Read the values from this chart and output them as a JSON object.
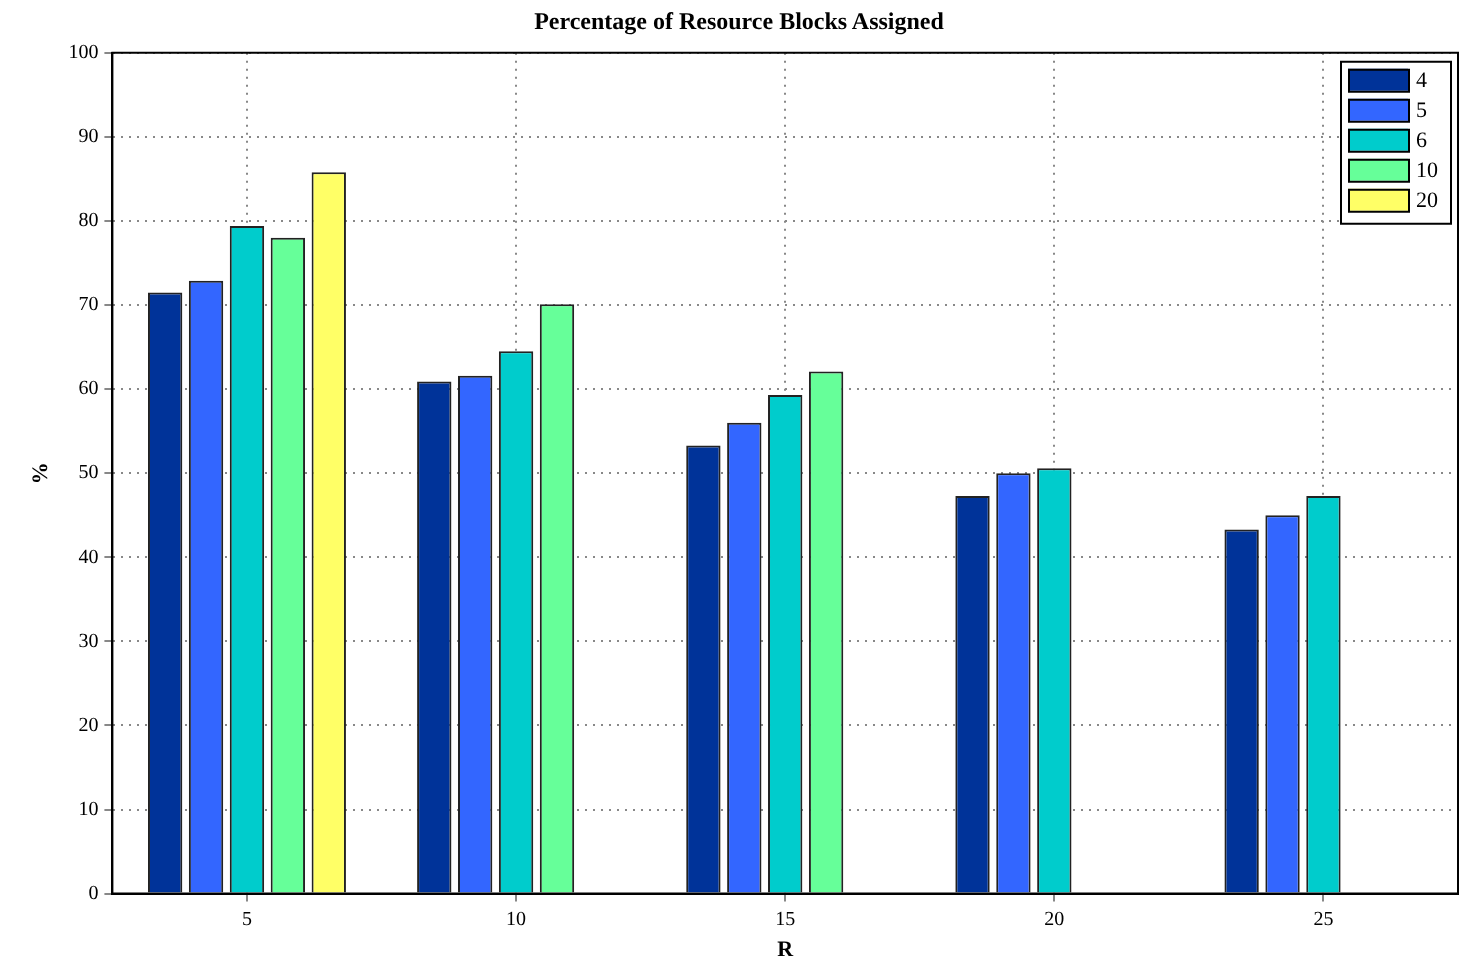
{
  "chart_data": {
    "type": "bar",
    "title": "Percentage of Resource Blocks Assigned",
    "xlabel": "R",
    "ylabel": "%",
    "categories": [
      "5",
      "10",
      "15",
      "20",
      "25"
    ],
    "series": [
      {
        "name": "4",
        "color": "#003399",
        "values": [
          71.5,
          60.9,
          53.3,
          47.3,
          43.3
        ]
      },
      {
        "name": "5",
        "color": "#3366ff",
        "values": [
          72.9,
          61.6,
          56.0,
          50.0,
          45.0
        ]
      },
      {
        "name": "6",
        "color": "#00cccc",
        "values": [
          79.4,
          64.5,
          59.3,
          50.6,
          47.3
        ]
      },
      {
        "name": "10",
        "color": "#66ff99",
        "values": [
          78.0,
          70.1,
          62.1,
          null,
          null
        ]
      },
      {
        "name": "20",
        "color": "#ffff66",
        "values": [
          85.8,
          null,
          null,
          null,
          null
        ]
      }
    ],
    "ylim": [
      0,
      100
    ],
    "yticks": [
      0,
      10,
      20,
      30,
      40,
      50,
      60,
      70,
      80,
      90,
      100
    ],
    "grid": true,
    "legend": "top right"
  }
}
